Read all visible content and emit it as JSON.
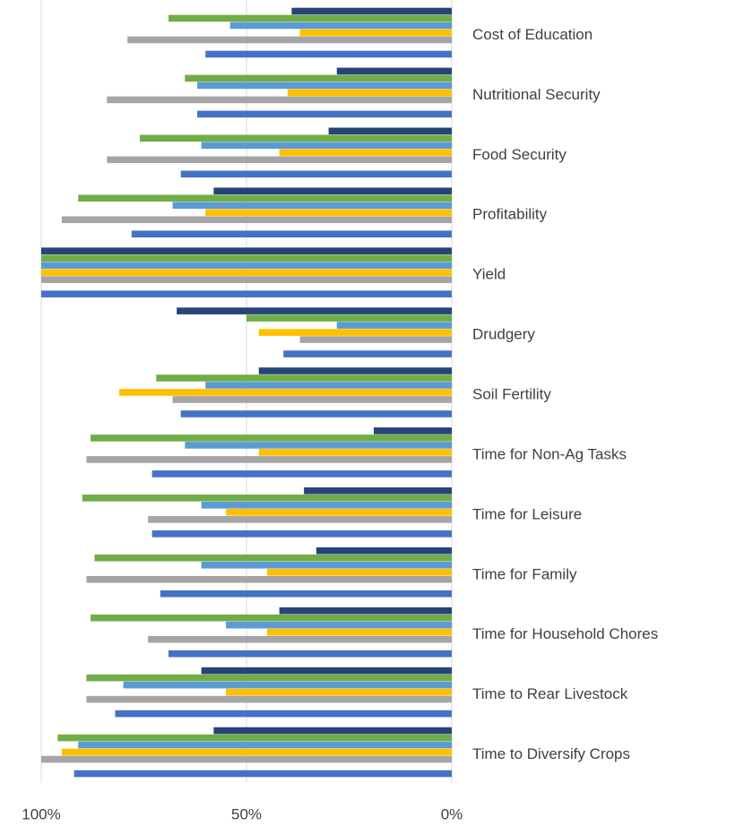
{
  "chart_data": {
    "type": "hbar",
    "categories": [
      "Cost of Education",
      "Nutritional Security",
      "Food Security",
      "Profitability",
      "Yield",
      "Drudgery",
      "Soil Fertility",
      "Time for Non-Ag Tasks",
      "Time for Leisure",
      "Time for Family",
      "Time for Household Chores",
      "Time to Rear Livestock",
      "Time to Diversify Crops"
    ],
    "series": [
      {
        "color": "#4472c4",
        "values": [
          60,
          62,
          66,
          78,
          100,
          41,
          66,
          73,
          73,
          71,
          69,
          82,
          92
        ]
      },
      {
        "color": "#ed7d31",
        "values": [
          0,
          0,
          0,
          0,
          0,
          0,
          0,
          0,
          0,
          0,
          0,
          0,
          0
        ]
      },
      {
        "color": "#a5a5a5",
        "values": [
          79,
          84,
          84,
          95,
          100,
          37,
          68,
          89,
          74,
          89,
          74,
          89,
          100
        ]
      },
      {
        "color": "#ffc000",
        "values": [
          37,
          40,
          42,
          60,
          100,
          47,
          81,
          47,
          55,
          45,
          45,
          55,
          95
        ]
      },
      {
        "color": "#5b9bd5",
        "values": [
          54,
          62,
          61,
          68,
          100,
          28,
          60,
          65,
          61,
          61,
          55,
          80,
          91
        ]
      },
      {
        "color": "#70ad47",
        "values": [
          69,
          65,
          76,
          91,
          100,
          50,
          72,
          88,
          90,
          87,
          88,
          89,
          96
        ]
      },
      {
        "color": "#264478",
        "values": [
          39,
          28,
          30,
          58,
          100,
          67,
          47,
          19,
          36,
          33,
          42,
          61,
          58
        ]
      }
    ],
    "xlim": [
      100,
      0
    ],
    "xticks": [
      {
        "value": 100,
        "label": "100%"
      },
      {
        "value": 50,
        "label": "50%"
      },
      {
        "value": 0,
        "label": "0%"
      }
    ],
    "grid": true
  }
}
